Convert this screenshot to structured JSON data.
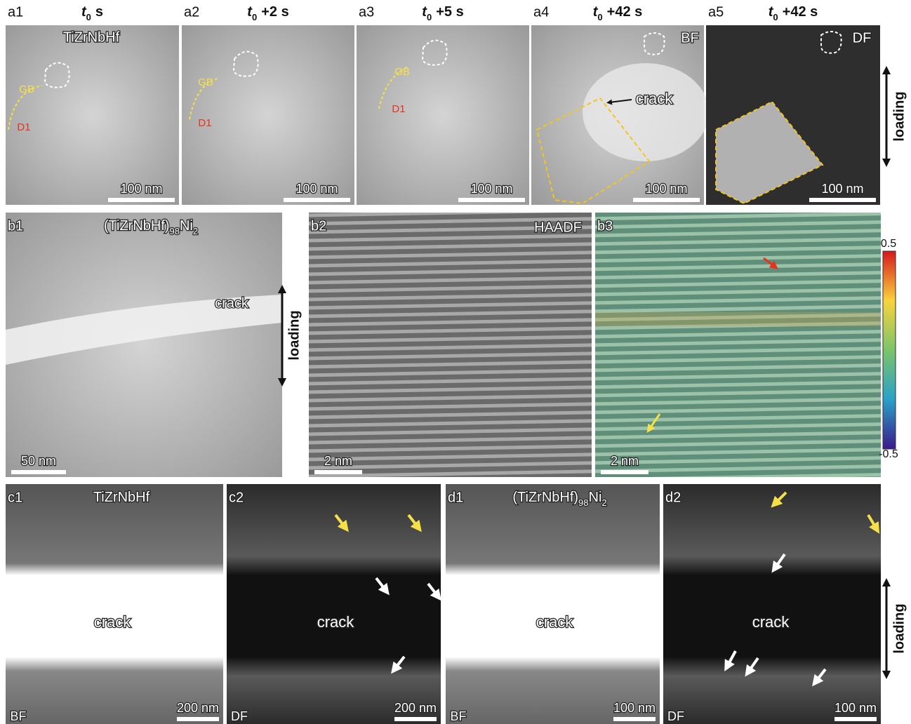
{
  "panels": [
    {
      "label": "a1",
      "title": {
        "italic": "t",
        "sub": "0",
        "text": "s"
      },
      "texts": [
        "TiZrNbHf",
        "GB",
        "D1"
      ],
      "scale_bar": "100 nm"
    },
    {
      "label": "a2",
      "title": {
        "italic": "t",
        "sub": "0",
        "text": "+2 s"
      },
      "texts": [
        "GB",
        "D1"
      ],
      "scale_bar": "100 nm"
    },
    {
      "label": "a3",
      "title": {
        "italic": "t",
        "sub": "0",
        "text": "+5 s"
      },
      "texts": [
        "GB",
        "D1"
      ],
      "scale_bar": "100 nm"
    },
    {
      "label": "a4",
      "title": {
        "italic": "t",
        "sub": "0",
        "text": "+42 s"
      },
      "texts": [
        "BF",
        "crack"
      ],
      "scale_bar": "100 nm"
    },
    {
      "label": "a5",
      "title": {
        "italic": "t",
        "sub": "0",
        "text": "+42 s"
      },
      "texts": [
        "DF",
        "loading"
      ],
      "scale_bar": "100 nm"
    },
    {
      "label": "b1",
      "title": {
        "text": "(TiZrNbHf)",
        "sub": "98",
        "text2": "Ni",
        "sub2": "2"
      },
      "texts": [
        "crack",
        "loading"
      ],
      "scale_bar": "50 nm"
    },
    {
      "label": "b2",
      "texts": [
        "HAADF"
      ],
      "scale_bar": "2 nm"
    },
    {
      "label": "b3",
      "texts": [],
      "scale_bar": "2 nm",
      "colorbar": {
        "max": "0.5",
        "min": "-0.5"
      }
    },
    {
      "label": "c1",
      "title": {
        "text": "TiZrNbHf"
      },
      "texts": [
        "crack",
        "BF"
      ],
      "scale_bar": "200 nm"
    },
    {
      "label": "c2",
      "texts": [
        "crack",
        "DF"
      ],
      "scale_bar": "200 nm"
    },
    {
      "label": "d1",
      "title": {
        "text": "(TiZrNbHf)",
        "sub": "98",
        "text2": "Ni",
        "sub2": "2"
      },
      "texts": [
        "crack",
        "BF"
      ],
      "scale_bar": "100 nm"
    },
    {
      "label": "d2",
      "texts": [
        "crack",
        "DF",
        "loading"
      ],
      "scale_bar": "100 nm"
    }
  ]
}
